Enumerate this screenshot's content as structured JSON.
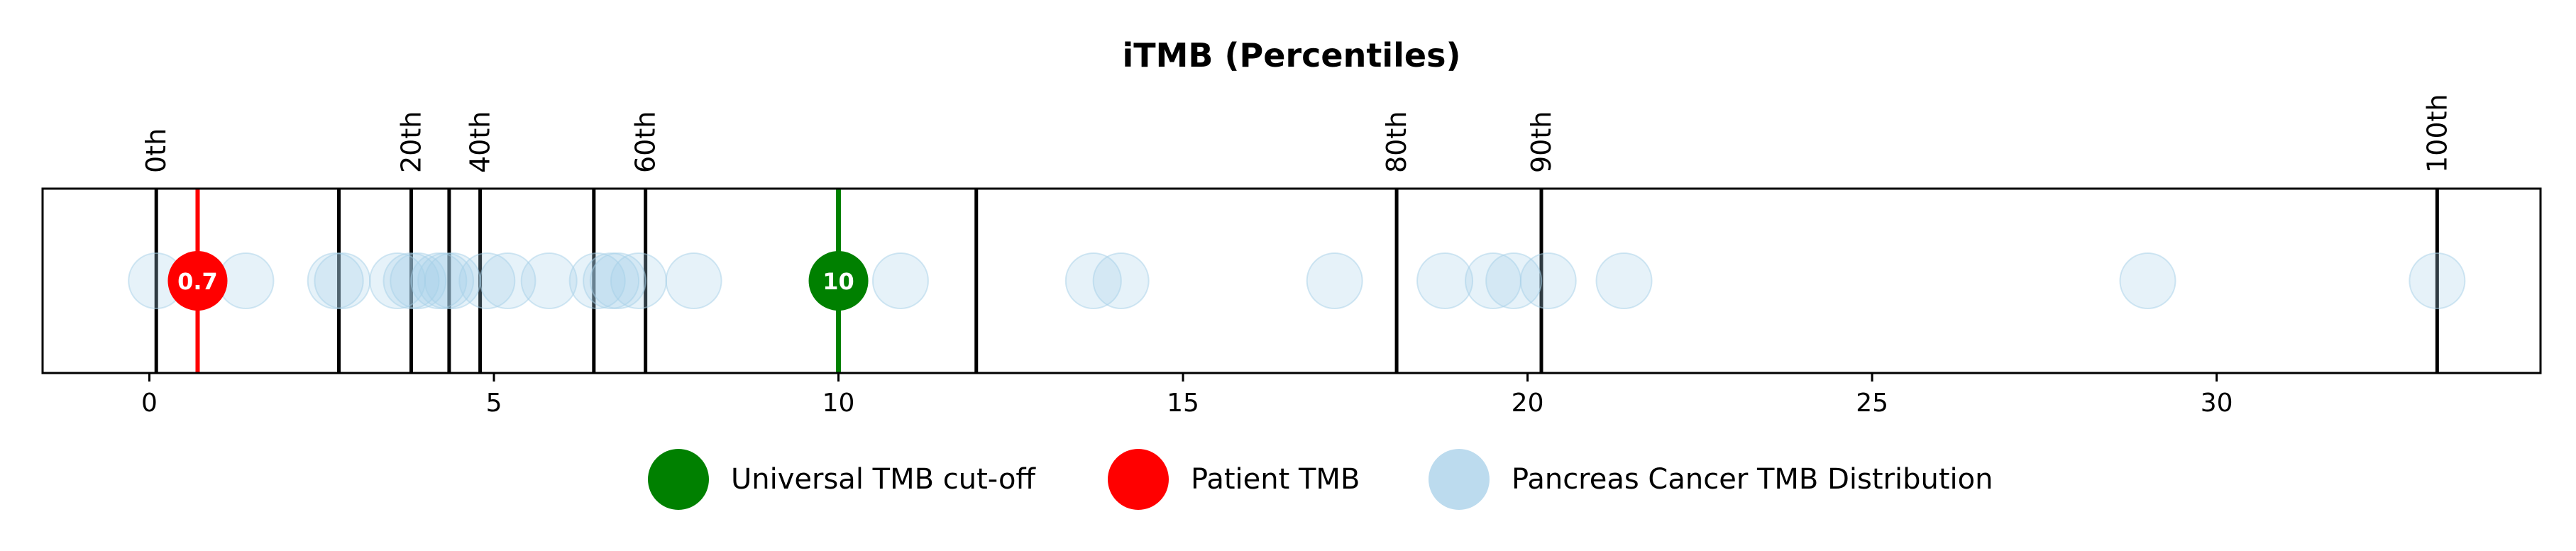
{
  "chart_data": {
    "type": "scatter",
    "title": "iTMB (Percentiles)",
    "xlabel": "",
    "ylabel": "",
    "xlim": [
      -1.55,
      34.7
    ],
    "x_ticks": [
      0,
      5,
      10,
      15,
      20,
      25,
      30
    ],
    "x_tick_labels": [
      "0",
      "5",
      "10",
      "15",
      "20",
      "25",
      "30"
    ],
    "grid": false,
    "legend_position": "bottom-center",
    "percentile_lines": [
      {
        "value": 0.1,
        "label": "0th"
      },
      {
        "value": 2.75
      },
      {
        "value": 3.8,
        "label": "20th"
      },
      {
        "value": 4.35
      },
      {
        "value": 4.8,
        "label": "40th"
      },
      {
        "value": 6.45
      },
      {
        "value": 7.2,
        "label": "60th"
      },
      {
        "value": 12.0
      },
      {
        "value": 18.1,
        "label": "80th"
      },
      {
        "value": 20.2,
        "label": "90th"
      },
      {
        "value": 33.2,
        "label": "100th"
      }
    ],
    "series": [
      {
        "name": "Universal TMB cut-off",
        "color": "#008000",
        "values": [
          10
        ],
        "point_label": "10"
      },
      {
        "name": "Patient TMB",
        "color": "#ff0000",
        "values": [
          0.7
        ],
        "point_label": "0.7"
      },
      {
        "name": "Pancreas Cancer TMB Distribution",
        "color": "#a6cfe8",
        "values": [
          0.1,
          1.4,
          2.7,
          2.8,
          3.6,
          3.8,
          3.9,
          4.2,
          4.3,
          4.4,
          4.9,
          5.2,
          5.8,
          6.5,
          6.7,
          6.8,
          7.1,
          7.9,
          10.9,
          13.7,
          14.1,
          17.2,
          18.8,
          19.5,
          19.8,
          20.3,
          21.4,
          29.0,
          33.2
        ]
      }
    ]
  }
}
